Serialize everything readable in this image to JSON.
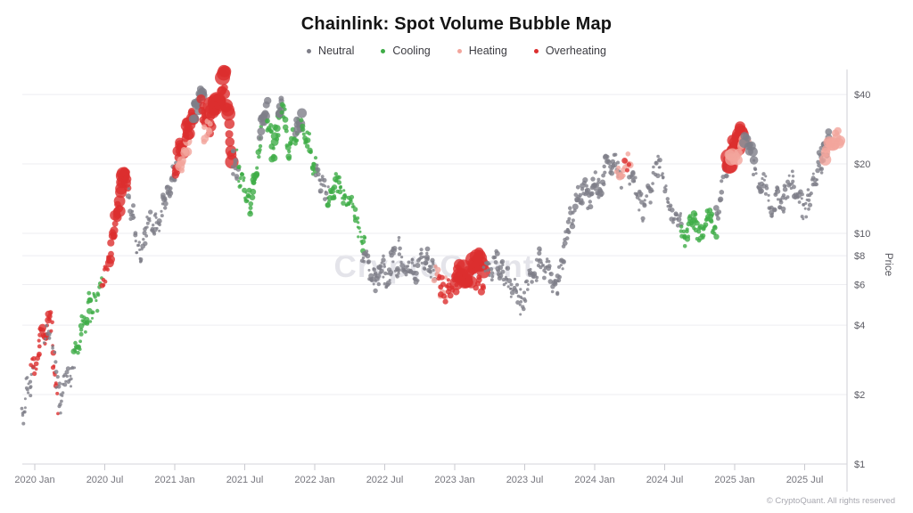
{
  "chart": {
    "title": "Chainlink: Spot Volume Bubble Map",
    "watermark": "CryptoQuant",
    "copyright": "© CryptoQuant. All rights reserved",
    "y_axis_label": "Price",
    "legend": [
      {
        "label": "Neutral",
        "color": "#7e7e88",
        "key": "N"
      },
      {
        "label": "Cooling",
        "color": "#3eac47",
        "key": "C"
      },
      {
        "label": "Heating",
        "color": "#f2a59c",
        "key": "H"
      },
      {
        "label": "Overheating",
        "color": "#dc2e2e",
        "key": "O"
      }
    ]
  },
  "chart_data": {
    "type": "scatter",
    "subtype": "volume-bubble-map",
    "title": "Chainlink: Spot Volume Bubble Map",
    "ylabel": "Price",
    "y_scale": "log",
    "ylim": [
      1,
      55
    ],
    "grid": "horizontal",
    "legend_position": "top-center",
    "y_ticks": [
      {
        "value": 40,
        "label": "$40"
      },
      {
        "value": 20,
        "label": "$20"
      },
      {
        "value": 10,
        "label": "$10"
      },
      {
        "value": 8,
        "label": "$8"
      },
      {
        "value": 6,
        "label": "$6"
      },
      {
        "value": 4,
        "label": "$4"
      },
      {
        "value": 2,
        "label": "$2"
      },
      {
        "value": 1,
        "label": "$1"
      }
    ],
    "x_ticks": [
      {
        "month": 0,
        "label": "2020 Jan"
      },
      {
        "month": 6,
        "label": "2020 Jul"
      },
      {
        "month": 12,
        "label": "2021 Jan"
      },
      {
        "month": 18,
        "label": "2021 Jul"
      },
      {
        "month": 24,
        "label": "2022 Jan"
      },
      {
        "month": 30,
        "label": "2022 Jul"
      },
      {
        "month": 36,
        "label": "2023 Jan"
      },
      {
        "month": 42,
        "label": "2023 Jul"
      },
      {
        "month": 48,
        "label": "2024 Jan"
      },
      {
        "month": 54,
        "label": "2024 Jul"
      },
      {
        "month": 60,
        "label": "2025 Jan"
      },
      {
        "month": 66,
        "label": "2025 Jul"
      }
    ],
    "x_range_months": [
      -1.2,
      69.3
    ],
    "categories": {
      "N": "Neutral",
      "C": "Cooling",
      "H": "Heating",
      "O": "Overheating"
    },
    "segment_fields": [
      "month_start",
      "month_end",
      "price_start",
      "price_end",
      "category",
      "points",
      "radius_min",
      "radius_max",
      "log_jitter"
    ],
    "segments": [
      [
        -1.1,
        -0.2,
        1.6,
        2.5,
        "N",
        20,
        1.5,
        2.6,
        0.06
      ],
      [
        -0.3,
        0.4,
        2.5,
        3.0,
        "O",
        10,
        1.8,
        3.2,
        0.045
      ],
      [
        0.3,
        1.4,
        3.2,
        4.5,
        "O",
        18,
        2.0,
        4.5,
        0.05
      ],
      [
        0.8,
        1.4,
        3.4,
        4.0,
        "N",
        8,
        1.5,
        2.6,
        0.045
      ],
      [
        1.4,
        2.0,
        3.8,
        1.8,
        "O",
        12,
        1.8,
        3.4,
        0.05
      ],
      [
        1.5,
        2.2,
        3.3,
        1.9,
        "N",
        10,
        1.5,
        2.6,
        0.05
      ],
      [
        2.1,
        3.4,
        1.85,
        2.9,
        "N",
        24,
        1.5,
        2.6,
        0.055
      ],
      [
        3.4,
        4.8,
        3.0,
        4.9,
        "C",
        28,
        1.8,
        3.4,
        0.05
      ],
      [
        4.8,
        5.7,
        4.4,
        6.0,
        "C",
        14,
        1.5,
        2.8,
        0.045
      ],
      [
        5.8,
        6.4,
        6.2,
        7.8,
        "O",
        12,
        2.0,
        3.6,
        0.04
      ],
      [
        6.4,
        7.1,
        7.8,
        12.5,
        "O",
        14,
        3.0,
        6.0,
        0.04
      ],
      [
        7.1,
        7.7,
        12.5,
        19.0,
        "O",
        14,
        4.0,
        8.0,
        0.04
      ],
      [
        7.7,
        8.0,
        18.5,
        15.5,
        "O",
        6,
        3.0,
        6.0,
        0.035
      ],
      [
        8.0,
        8.9,
        15.0,
        8.7,
        "N",
        18,
        1.5,
        3.0,
        0.05
      ],
      [
        8.9,
        10.2,
        8.7,
        11.5,
        "N",
        26,
        1.5,
        3.0,
        0.06
      ],
      [
        10.2,
        11.2,
        10.0,
        13.5,
        "N",
        20,
        1.5,
        3.0,
        0.05
      ],
      [
        11.2,
        12.1,
        13.5,
        20.0,
        "N",
        18,
        2.0,
        3.5,
        0.045
      ],
      [
        12.1,
        12.9,
        20.0,
        26.0,
        "O",
        16,
        4.0,
        7.0,
        0.04
      ],
      [
        12.4,
        13.1,
        19.0,
        24.0,
        "H",
        10,
        3.0,
        6.0,
        0.04
      ],
      [
        12.9,
        13.6,
        26.0,
        33.0,
        "O",
        14,
        4.0,
        7.0,
        0.04
      ],
      [
        13.6,
        14.5,
        33.0,
        43.0,
        "N",
        16,
        3.5,
        6.0,
        0.035
      ],
      [
        14.3,
        15.1,
        36.0,
        30.0,
        "O",
        14,
        4.0,
        7.0,
        0.04
      ],
      [
        14.5,
        15.0,
        26.0,
        29.0,
        "H",
        8,
        3.0,
        5.0,
        0.035
      ],
      [
        14.8,
        15.4,
        33.0,
        37.0,
        "H",
        6,
        4.0,
        6.0,
        0.03
      ],
      [
        15.1,
        16.3,
        31.0,
        49.0,
        "O",
        20,
        5.0,
        10.5,
        0.04
      ],
      [
        16.3,
        16.9,
        45.0,
        21.0,
        "O",
        12,
        4.0,
        8.0,
        0.045
      ],
      [
        16.9,
        17.4,
        22.0,
        17.5,
        "N",
        10,
        2.0,
        3.0,
        0.04
      ],
      [
        17.4,
        18.5,
        20.0,
        13.0,
        "C",
        24,
        1.5,
        3.0,
        0.05
      ],
      [
        18.5,
        19.4,
        13.0,
        27.0,
        "C",
        20,
        2.0,
        4.0,
        0.045
      ],
      [
        19.3,
        19.9,
        27.0,
        36.0,
        "N",
        12,
        3.5,
        6.0,
        0.035
      ],
      [
        19.9,
        20.4,
        33.0,
        22.0,
        "C",
        10,
        2.0,
        3.5,
        0.045
      ],
      [
        20.4,
        21.1,
        22.0,
        35.0,
        "C",
        14,
        2.5,
        4.5,
        0.04
      ],
      [
        20.9,
        21.2,
        33.0,
        37.0,
        "N",
        6,
        3.0,
        5.0,
        0.03
      ],
      [
        21.2,
        21.8,
        35.0,
        23.0,
        "C",
        12,
        2.0,
        3.5,
        0.045
      ],
      [
        21.8,
        22.6,
        23.0,
        30.0,
        "C",
        14,
        2.0,
        4.0,
        0.04
      ],
      [
        22.4,
        22.9,
        28.0,
        31.0,
        "N",
        8,
        3.5,
        5.5,
        0.03
      ],
      [
        22.9,
        24.1,
        29.0,
        19.0,
        "C",
        22,
        2.0,
        3.5,
        0.05
      ],
      [
        24.1,
        25.1,
        19.0,
        14.5,
        "N",
        20,
        1.5,
        3.0,
        0.05
      ],
      [
        25.1,
        26.1,
        14.5,
        16.8,
        "C",
        20,
        2.0,
        3.5,
        0.045
      ],
      [
        26.1,
        28.3,
        16.8,
        9.3,
        "C",
        40,
        1.5,
        3.0,
        0.05
      ],
      [
        28.1,
        29.2,
        8.2,
        6.2,
        "N",
        22,
        1.5,
        3.0,
        0.05
      ],
      [
        29.2,
        31.2,
        6.5,
        7.5,
        "N",
        45,
        1.5,
        3.0,
        0.065
      ],
      [
        31.2,
        32.4,
        8.4,
        6.6,
        "N",
        24,
        1.5,
        3.0,
        0.05
      ],
      [
        32.4,
        33.6,
        6.6,
        7.9,
        "N",
        24,
        1.5,
        3.0,
        0.05
      ],
      [
        33.6,
        34.4,
        7.6,
        6.7,
        "N",
        16,
        1.5,
        3.0,
        0.045
      ],
      [
        34.3,
        35.3,
        6.7,
        5.4,
        "H",
        14,
        2.0,
        3.5,
        0.045
      ],
      [
        34.6,
        35.4,
        6.2,
        5.5,
        "O",
        10,
        2.0,
        3.5,
        0.045
      ],
      [
        35.4,
        36.2,
        5.6,
        6.2,
        "O",
        10,
        2.5,
        4.0,
        0.04
      ],
      [
        36.2,
        38.4,
        6.2,
        7.6,
        "O",
        26,
        5.0,
        9.5,
        0.045
      ],
      [
        37.7,
        38.5,
        6.2,
        5.8,
        "O",
        8,
        3.0,
        5.0,
        0.035
      ],
      [
        38.5,
        39.7,
        6.8,
        7.5,
        "N",
        20,
        1.5,
        3.0,
        0.05
      ],
      [
        39.7,
        40.6,
        7.4,
        6.3,
        "N",
        18,
        1.5,
        3.0,
        0.045
      ],
      [
        40.6,
        41.6,
        6.3,
        5.1,
        "N",
        18,
        1.5,
        3.0,
        0.045
      ],
      [
        41.6,
        43.3,
        5.1,
        7.8,
        "N",
        30,
        1.5,
        3.0,
        0.05
      ],
      [
        43.3,
        44.8,
        7.8,
        6.0,
        "N",
        28,
        1.5,
        3.0,
        0.05
      ],
      [
        44.8,
        45.8,
        6.0,
        11.0,
        "N",
        20,
        1.5,
        3.0,
        0.045
      ],
      [
        45.8,
        46.8,
        11.0,
        15.5,
        "N",
        18,
        2.0,
        3.5,
        0.045
      ],
      [
        46.8,
        48.3,
        14.5,
        15.8,
        "N",
        30,
        2.0,
        3.5,
        0.055
      ],
      [
        48.3,
        49.3,
        15.8,
        20.5,
        "N",
        18,
        2.0,
        3.5,
        0.045
      ],
      [
        49.3,
        50.3,
        20.5,
        18.0,
        "N",
        16,
        2.0,
        3.5,
        0.045
      ],
      [
        49.9,
        51.0,
        17.5,
        20.0,
        "H",
        12,
        2.5,
        4.5,
        0.04
      ],
      [
        50.6,
        50.9,
        19.5,
        20.0,
        "O",
        3,
        2.5,
        3.5,
        0.03
      ],
      [
        51.0,
        52.1,
        19.0,
        12.8,
        "N",
        20,
        1.5,
        3.0,
        0.05
      ],
      [
        52.1,
        53.4,
        12.8,
        19.0,
        "N",
        22,
        1.5,
        3.0,
        0.05
      ],
      [
        53.4,
        55.4,
        19.0,
        10.6,
        "N",
        34,
        1.5,
        3.0,
        0.05
      ],
      [
        55.4,
        58.4,
        10.2,
        11.2,
        "C",
        55,
        2.0,
        3.5,
        0.055
      ],
      [
        58.4,
        59.4,
        12.0,
        20.0,
        "N",
        16,
        2.0,
        3.5,
        0.045
      ],
      [
        59.4,
        60.6,
        21.0,
        28.5,
        "O",
        18,
        5.0,
        9.5,
        0.04
      ],
      [
        59.6,
        61.0,
        20.0,
        25.5,
        "H",
        12,
        4.0,
        8.0,
        0.04
      ],
      [
        60.8,
        61.6,
        26.0,
        22.0,
        "N",
        10,
        3.5,
        6.0,
        0.035
      ],
      [
        61.6,
        63.2,
        20.0,
        12.8,
        "N",
        28,
        1.5,
        3.0,
        0.05
      ],
      [
        63.2,
        64.2,
        12.5,
        14.5,
        "N",
        20,
        1.5,
        3.0,
        0.055
      ],
      [
        64.2,
        64.9,
        14.5,
        17.2,
        "N",
        12,
        1.5,
        3.0,
        0.045
      ],
      [
        64.9,
        65.8,
        17.2,
        12.8,
        "N",
        16,
        1.5,
        3.0,
        0.045
      ],
      [
        65.8,
        66.3,
        12.8,
        14.0,
        "N",
        10,
        1.5,
        3.0,
        0.045
      ],
      [
        66.3,
        67.6,
        14.0,
        21.0,
        "N",
        22,
        1.5,
        3.0,
        0.045
      ],
      [
        67.3,
        68.1,
        21.0,
        26.0,
        "N",
        12,
        2.5,
        4.0,
        0.04
      ],
      [
        67.7,
        69.1,
        22.0,
        26.5,
        "H",
        14,
        4.0,
        8.0,
        0.045
      ]
    ]
  }
}
